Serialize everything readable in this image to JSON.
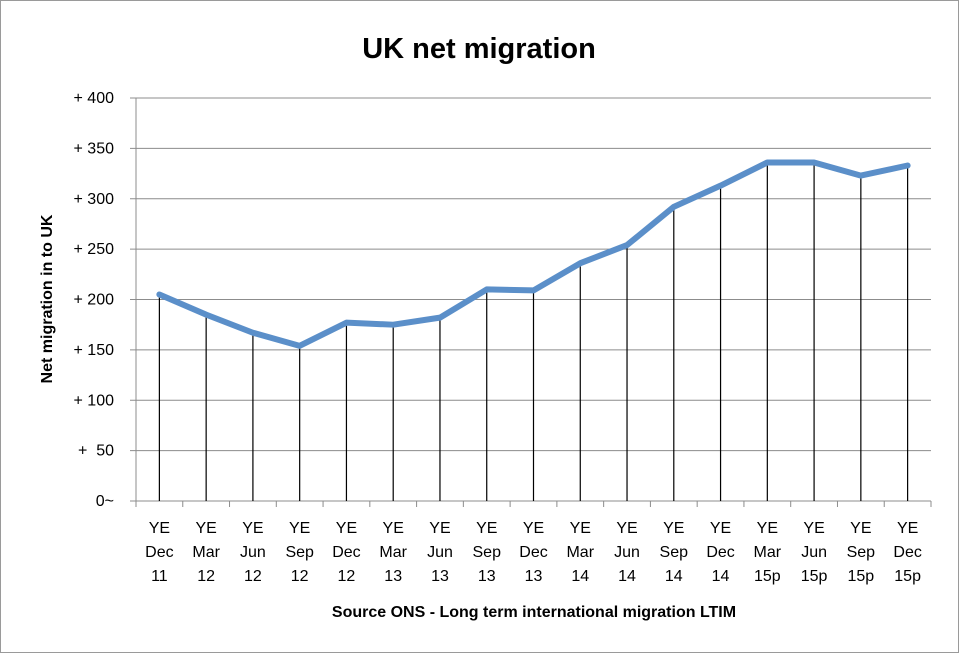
{
  "chart_data": {
    "type": "line",
    "title": "UK net migration",
    "xlabel": "Source ONS - Long term international migration LTIM",
    "ylabel": "Net migration in to UK",
    "ylim": [
      0,
      400
    ],
    "yticks": [
      0,
      50,
      100,
      150,
      200,
      250,
      300,
      350,
      400
    ],
    "ytick_labels": [
      "0~",
      "+  50",
      "+ 100",
      "+ 150",
      "+ 200",
      "+ 250",
      "+ 300",
      "+ 350",
      "+ 400"
    ],
    "grid": true,
    "legend": "none",
    "categories": [
      [
        "YE",
        "Dec",
        "11"
      ],
      [
        "YE",
        "Mar",
        "12"
      ],
      [
        "YE",
        "Jun",
        "12"
      ],
      [
        "YE",
        "Sep",
        "12"
      ],
      [
        "YE",
        "Dec",
        "12"
      ],
      [
        "YE",
        "Mar",
        "13"
      ],
      [
        "YE",
        "Jun",
        "13"
      ],
      [
        "YE",
        "Sep",
        "13"
      ],
      [
        "YE",
        "Dec",
        "13"
      ],
      [
        "YE",
        "Mar",
        "14"
      ],
      [
        "YE",
        "Jun",
        "14"
      ],
      [
        "YE",
        "Sep",
        "14"
      ],
      [
        "YE",
        "Dec",
        "14"
      ],
      [
        "YE",
        "Mar",
        "15p"
      ],
      [
        "YE",
        "Jun",
        "15p"
      ],
      [
        "YE",
        "Sep",
        "15p"
      ],
      [
        "YE",
        "Dec",
        "15p"
      ]
    ],
    "series": [
      {
        "values": [
          205,
          185,
          167,
          154,
          177,
          175,
          182,
          210,
          209,
          236,
          254,
          292,
          313,
          336,
          336,
          323,
          333
        ],
        "color": "#5b8fc9",
        "drop_lines": true
      }
    ]
  }
}
